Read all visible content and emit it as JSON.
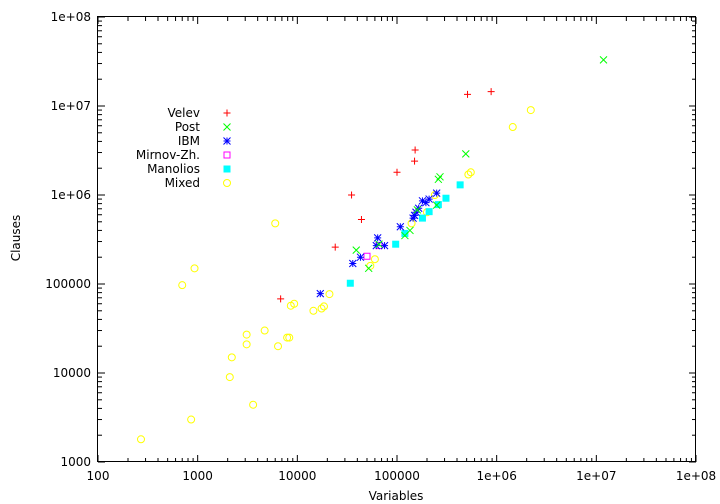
{
  "chart_data": {
    "type": "scatter",
    "title": "",
    "xlabel": "Variables",
    "ylabel": "Clauses",
    "x_scale": "log",
    "y_scale": "log",
    "xlim": [
      100,
      100000000
    ],
    "ylim": [
      1000,
      100000000
    ],
    "grid": false,
    "legend_position": "top-left",
    "x_ticks": [
      {
        "value": 100,
        "label": "100"
      },
      {
        "value": 1000,
        "label": "1000"
      },
      {
        "value": 10000,
        "label": "10000"
      },
      {
        "value": 100000,
        "label": "100000"
      },
      {
        "value": 1000000,
        "label": "1e+06"
      },
      {
        "value": 10000000,
        "label": "1e+07"
      },
      {
        "value": 100000000,
        "label": "1e+08"
      }
    ],
    "y_ticks": [
      {
        "value": 1000,
        "label": "1000"
      },
      {
        "value": 10000,
        "label": "10000"
      },
      {
        "value": 100000,
        "label": "100000"
      },
      {
        "value": 1000000,
        "label": "1e+06"
      },
      {
        "value": 10000000,
        "label": "1e+07"
      },
      {
        "value": 100000000,
        "label": "1e+08"
      }
    ],
    "series": [
      {
        "name": "Velev",
        "marker": "plus",
        "color": "#ff0000",
        "points": [
          [
            6800,
            68000
          ],
          [
            24000,
            260000
          ],
          [
            35000,
            1000000
          ],
          [
            44000,
            530000
          ],
          [
            100000,
            1800000
          ],
          [
            150000,
            2400000
          ],
          [
            152000,
            3200000
          ],
          [
            510000,
            13500000
          ],
          [
            880000,
            14500000
          ]
        ]
      },
      {
        "name": "Post",
        "marker": "cross",
        "color": "#00ff00",
        "points": [
          [
            39000,
            240000
          ],
          [
            52000,
            150000
          ],
          [
            66000,
            280000
          ],
          [
            120000,
            350000
          ],
          [
            135000,
            400000
          ],
          [
            160000,
            680000
          ],
          [
            250000,
            770000
          ],
          [
            260000,
            1500000
          ],
          [
            270000,
            1600000
          ],
          [
            490000,
            2900000
          ],
          [
            11800000,
            33000000
          ]
        ]
      },
      {
        "name": "IBM",
        "marker": "star",
        "color": "#0000ff",
        "points": [
          [
            17000,
            78000
          ],
          [
            36000,
            170000
          ],
          [
            43000,
            200000
          ],
          [
            62000,
            270000
          ],
          [
            64000,
            330000
          ],
          [
            75000,
            270000
          ],
          [
            108000,
            440000
          ],
          [
            145000,
            550000
          ],
          [
            150000,
            590000
          ],
          [
            155000,
            640000
          ],
          [
            165000,
            710000
          ],
          [
            180000,
            860000
          ],
          [
            195000,
            820000
          ],
          [
            210000,
            900000
          ],
          [
            250000,
            1050000
          ]
        ]
      },
      {
        "name": "Mirnov-Zh.",
        "marker": "square-open",
        "color": "#ff00ff",
        "points": [
          [
            50000,
            205000
          ],
          [
            66000,
            270000
          ]
        ]
      },
      {
        "name": "Manolios",
        "marker": "square-filled",
        "color": "#00ffff",
        "points": [
          [
            34000,
            102000
          ],
          [
            97000,
            280000
          ],
          [
            120000,
            370000
          ],
          [
            180000,
            550000
          ],
          [
            210000,
            650000
          ],
          [
            260000,
            780000
          ],
          [
            310000,
            920000
          ],
          [
            430000,
            1300000
          ]
        ]
      },
      {
        "name": "Mixed",
        "marker": "circle-open",
        "color": "#ffff00",
        "points": [
          [
            270,
            1800
          ],
          [
            700,
            97000
          ],
          [
            860,
            3000
          ],
          [
            930,
            150000
          ],
          [
            2100,
            9000
          ],
          [
            2200,
            15000
          ],
          [
            3100,
            21000
          ],
          [
            3100,
            27000
          ],
          [
            3600,
            4400
          ],
          [
            4700,
            30000
          ],
          [
            6000,
            480000
          ],
          [
            6400,
            20000
          ],
          [
            7900,
            25000
          ],
          [
            8300,
            25000
          ],
          [
            8600,
            57000
          ],
          [
            9300,
            60000
          ],
          [
            14500,
            50000
          ],
          [
            17500,
            53000
          ],
          [
            18500,
            56000
          ],
          [
            21000,
            77000
          ],
          [
            54000,
            160000
          ],
          [
            60000,
            190000
          ],
          [
            140000,
            480000
          ],
          [
            200000,
            640000
          ],
          [
            240000,
            1000000
          ],
          [
            520000,
            1700000
          ],
          [
            550000,
            1800000
          ],
          [
            1450000,
            5800000
          ],
          [
            2200000,
            9000000
          ]
        ]
      }
    ]
  }
}
